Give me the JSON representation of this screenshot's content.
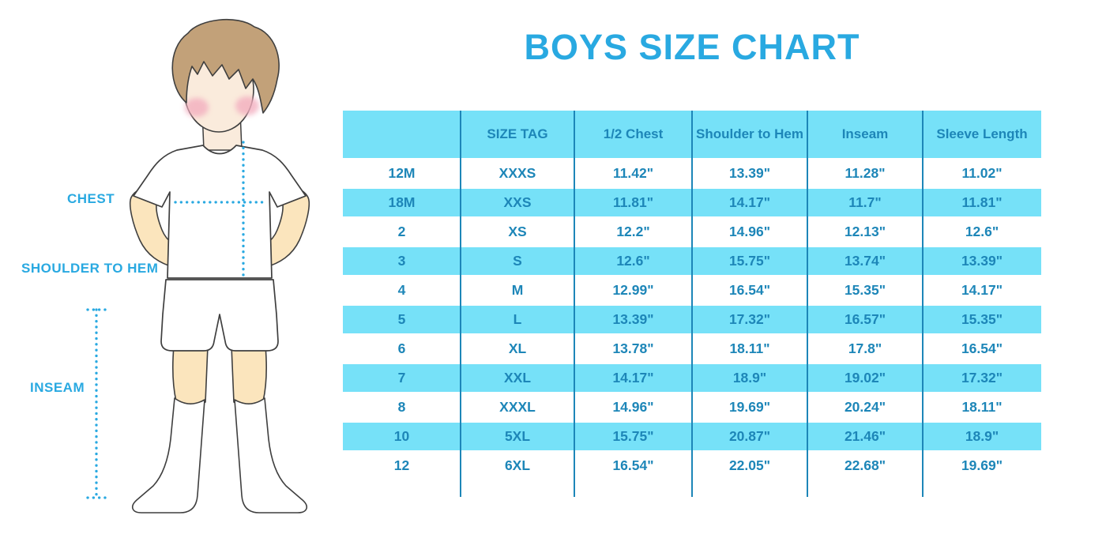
{
  "title": "BOYS SIZE CHART",
  "colors": {
    "accent": "#29A9E1",
    "row_fill": "#76E1F8",
    "text_blue": "#1D86B8",
    "divider_line": "#1D86B8"
  },
  "figure": {
    "description": "illustration of a boy in white t-shirt, shorts and knee socks with measurement guides",
    "labels": {
      "chest": "CHEST",
      "shoulder_to_hem": "SHOULDER TO HEM",
      "inseam": "INSEAM"
    }
  },
  "chart_data": {
    "type": "table",
    "title": "BOYS SIZE CHART",
    "columns": [
      "",
      "SIZE TAG",
      "1/2 Chest",
      "Shoulder to Hem",
      "Inseam",
      "Sleeve Length"
    ],
    "rows": [
      [
        "12M",
        "XXXS",
        "11.42\"",
        "13.39\"",
        "11.28\"",
        "11.02\""
      ],
      [
        "18M",
        "XXS",
        "11.81\"",
        "14.17\"",
        "11.7\"",
        "11.81\""
      ],
      [
        "2",
        "XS",
        "12.2\"",
        "14.96\"",
        "12.13\"",
        "12.6\""
      ],
      [
        "3",
        "S",
        "12.6\"",
        "15.75\"",
        "13.74\"",
        "13.39\""
      ],
      [
        "4",
        "M",
        "12.99\"",
        "16.54\"",
        "15.35\"",
        "14.17\""
      ],
      [
        "5",
        "L",
        "13.39\"",
        "17.32\"",
        "16.57\"",
        "15.35\""
      ],
      [
        "6",
        "XL",
        "13.78\"",
        "18.11\"",
        "17.8\"",
        "16.54\""
      ],
      [
        "7",
        "XXL",
        "14.17\"",
        "18.9\"",
        "19.02\"",
        "17.32\""
      ],
      [
        "8",
        "XXXL",
        "14.96\"",
        "19.69\"",
        "20.24\"",
        "18.11\""
      ],
      [
        "10",
        "5XL",
        "15.75\"",
        "20.87\"",
        "21.46\"",
        "18.9\""
      ],
      [
        "12",
        "6XL",
        "16.54\"",
        "22.05\"",
        "22.68\"",
        "19.69\""
      ]
    ]
  }
}
